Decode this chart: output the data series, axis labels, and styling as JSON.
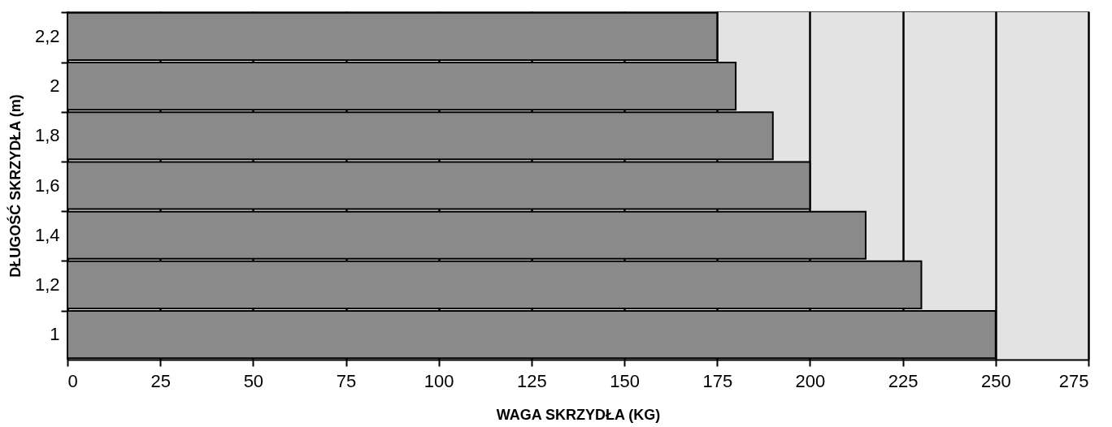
{
  "chart_data": {
    "type": "bar",
    "orientation": "horizontal",
    "xlabel": "WAGA SKRZYDŁA (KG)",
    "ylabel": "DŁUGOŚĆ SKRZYDŁA (m)",
    "categories": [
      "2,2",
      "2",
      "1,8",
      "1,6",
      "1,4",
      "1,2",
      "1"
    ],
    "values": [
      175,
      180,
      190,
      200,
      215,
      230,
      250
    ],
    "color": "#8a8a8a",
    "xlim": [
      0,
      275
    ],
    "xticks": [
      0,
      25,
      50,
      75,
      100,
      125,
      150,
      175,
      200,
      225,
      250,
      275
    ],
    "grid": "x"
  }
}
